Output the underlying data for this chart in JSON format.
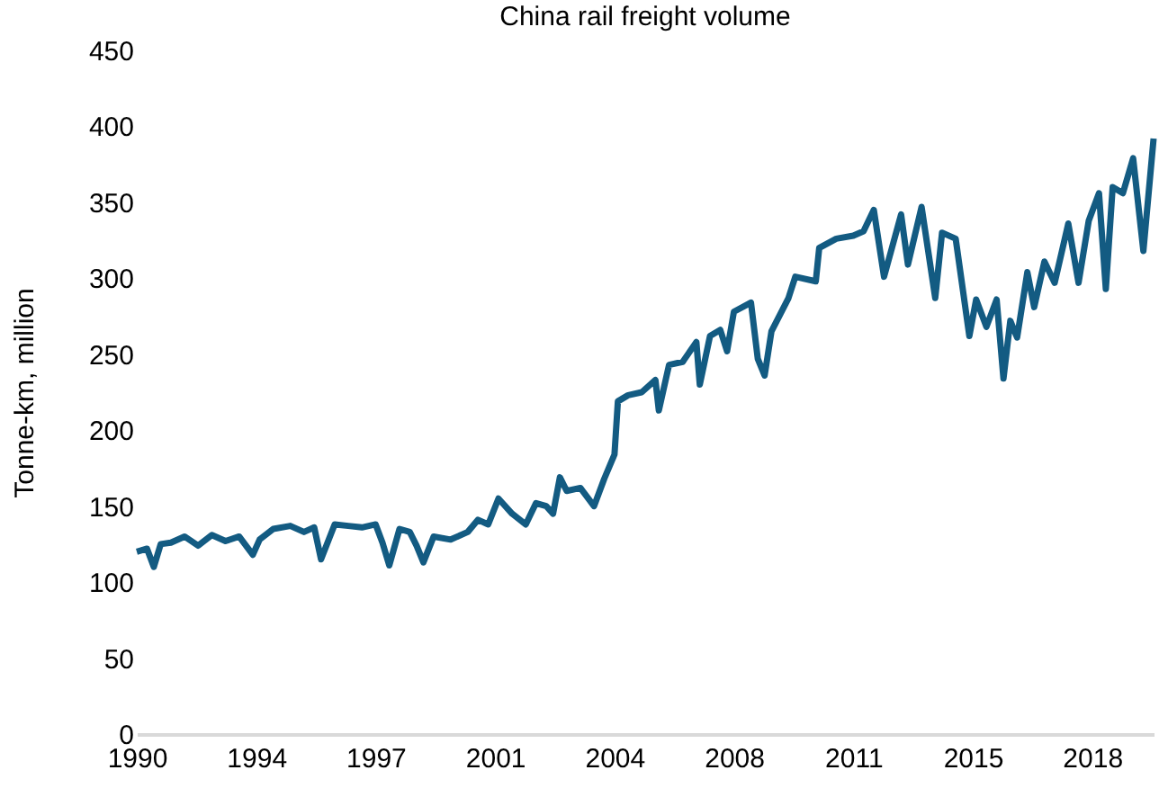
{
  "chart_data": {
    "type": "line",
    "title": "China rail freight volume",
    "ylabel": "Tonne-km, million",
    "x": [
      1990.0,
      1990.3,
      1990.5,
      1990.7,
      1991.0,
      1991.4,
      1991.8,
      1992.2,
      1992.6,
      1993.0,
      1993.4,
      1993.6,
      1994.0,
      1994.5,
      1994.9,
      1995.2,
      1995.4,
      1995.8,
      1996.2,
      1996.6,
      1997.0,
      1997.2,
      1997.4,
      1997.7,
      1998.0,
      1998.2,
      1998.4,
      1998.7,
      1999.2,
      1999.7,
      2000.0,
      2000.3,
      2000.6,
      2001.0,
      2001.4,
      2001.7,
      2002.0,
      2002.2,
      2002.4,
      2002.6,
      2003.0,
      2003.4,
      2003.7,
      2004.0,
      2004.1,
      2004.4,
      2004.8,
      2005.2,
      2005.3,
      2005.6,
      2006.0,
      2006.4,
      2006.5,
      2006.8,
      2007.1,
      2007.3,
      2007.5,
      2008.0,
      2008.2,
      2008.4,
      2008.6,
      2009.1,
      2009.3,
      2009.9,
      2010.0,
      2010.5,
      2011.0,
      2011.3,
      2011.6,
      2011.9,
      2012.4,
      2012.6,
      2013.0,
      2013.4,
      2013.6,
      2014.0,
      2014.4,
      2014.6,
      2014.9,
      2015.2,
      2015.4,
      2015.6,
      2015.8,
      2016.1,
      2016.3,
      2016.6,
      2016.9,
      2017.3,
      2017.6,
      2017.9,
      2018.2,
      2018.4,
      2018.6,
      2018.9,
      2019.2,
      2019.5,
      2019.8
    ],
    "values": [
      120,
      122,
      110,
      125,
      126,
      130,
      124,
      131,
      127,
      130,
      118,
      128,
      135,
      137,
      133,
      136,
      115,
      138,
      137,
      136,
      138,
      126,
      111,
      135,
      133,
      124,
      113,
      130,
      128,
      133,
      141,
      138,
      155,
      145,
      138,
      152,
      150,
      145,
      169,
      160,
      162,
      150,
      168,
      184,
      219,
      223,
      225,
      233,
      213,
      243,
      245,
      258,
      230,
      262,
      266,
      252,
      278,
      284,
      247,
      236,
      265,
      287,
      301,
      298,
      320,
      326,
      328,
      331,
      345,
      301,
      342,
      309,
      347,
      287,
      330,
      326,
      262,
      286,
      268,
      286,
      234,
      272,
      261,
      304,
      281,
      311,
      297,
      336,
      297,
      338,
      356,
      293,
      360,
      356,
      379,
      318,
      392
    ],
    "color": "#135b82",
    "xlim": [
      1990,
      2019.8
    ],
    "xticks": [
      {
        "value": 1990,
        "label": "1990"
      },
      {
        "value": 1993.5,
        "label": "1994"
      },
      {
        "value": 1997,
        "label": "1997"
      },
      {
        "value": 2000.5,
        "label": "2001"
      },
      {
        "value": 2004,
        "label": "2004"
      },
      {
        "value": 2007.5,
        "label": "2008"
      },
      {
        "value": 2011,
        "label": "2011"
      },
      {
        "value": 2014.5,
        "label": "2015"
      },
      {
        "value": 2018,
        "label": "2018"
      }
    ],
    "ylim": [
      0,
      450
    ],
    "yticks": [
      0,
      50,
      100,
      150,
      200,
      250,
      300,
      350,
      400,
      450
    ],
    "grid": false
  }
}
